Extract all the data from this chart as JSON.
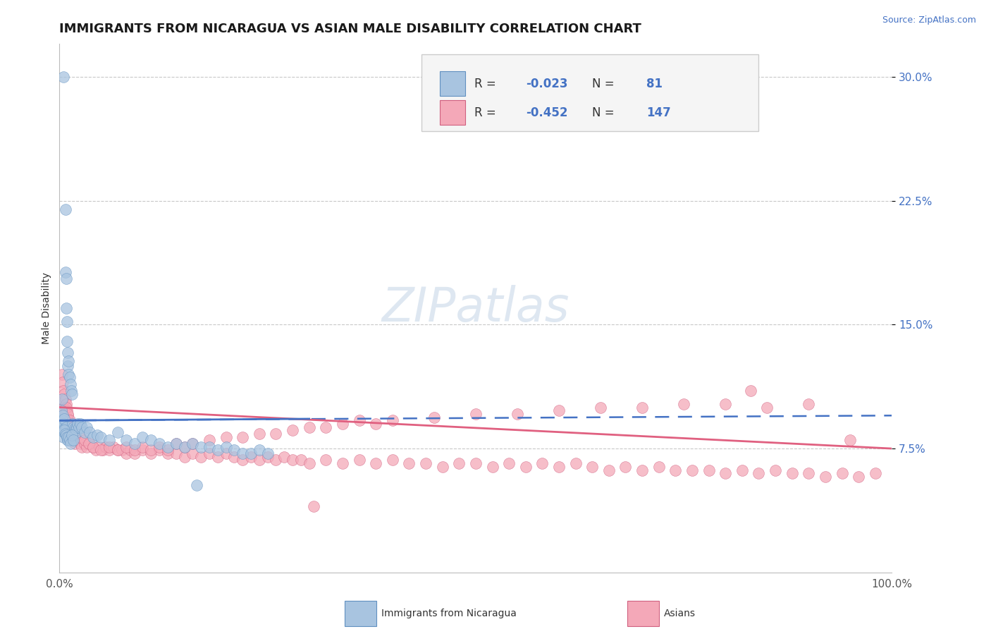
{
  "title": "IMMIGRANTS FROM NICARAGUA VS ASIAN MALE DISABILITY CORRELATION CHART",
  "source_text": "Source: ZipAtlas.com",
  "ylabel": "Male Disability",
  "watermark": "ZIPatlas",
  "xlim": [
    0.0,
    1.0
  ],
  "ylim": [
    0.0,
    0.32
  ],
  "x_ticks": [
    0.0,
    1.0
  ],
  "x_tick_labels": [
    "0.0%",
    "100.0%"
  ],
  "y_ticks": [
    0.075,
    0.15,
    0.225,
    0.3
  ],
  "y_tick_labels": [
    "7.5%",
    "15.0%",
    "22.5%",
    "30.0%"
  ],
  "blue_R": -0.023,
  "blue_N": 81,
  "pink_R": -0.452,
  "pink_N": 147,
  "blue_color": "#a8c4e0",
  "pink_color": "#f4a8b8",
  "blue_edge_color": "#6090c0",
  "pink_edge_color": "#d06080",
  "blue_line_color": "#4472c4",
  "pink_line_color": "#e06080",
  "tick_color": "#4472c4",
  "legend_box_color": "#f5f5f5",
  "legend_border_color": "#cccccc",
  "grid_color": "#c8c8c8",
  "background_color": "#ffffff",
  "title_fontsize": 13,
  "axis_label_fontsize": 10,
  "tick_label_fontsize": 11,
  "legend_fontsize": 12,
  "watermark_fontsize": 48,
  "watermark_color": "#c8d8e8",
  "watermark_alpha": 0.6,
  "blue_scatter_x": [
    0.002,
    0.003,
    0.003,
    0.004,
    0.004,
    0.005,
    0.005,
    0.005,
    0.006,
    0.006,
    0.006,
    0.007,
    0.007,
    0.008,
    0.008,
    0.008,
    0.009,
    0.009,
    0.009,
    0.01,
    0.01,
    0.01,
    0.011,
    0.011,
    0.011,
    0.012,
    0.012,
    0.013,
    0.013,
    0.014,
    0.014,
    0.015,
    0.015,
    0.016,
    0.017,
    0.018,
    0.019,
    0.02,
    0.021,
    0.022,
    0.023,
    0.025,
    0.027,
    0.03,
    0.033,
    0.036,
    0.04,
    0.045,
    0.05,
    0.06,
    0.07,
    0.08,
    0.09,
    0.1,
    0.11,
    0.12,
    0.13,
    0.14,
    0.15,
    0.16,
    0.17,
    0.18,
    0.19,
    0.2,
    0.21,
    0.22,
    0.23,
    0.24,
    0.25,
    0.006,
    0.007,
    0.008,
    0.009,
    0.01,
    0.011,
    0.012,
    0.013,
    0.015,
    0.017,
    0.165
  ],
  "blue_scatter_y": [
    0.098,
    0.092,
    0.105,
    0.088,
    0.095,
    0.082,
    0.09,
    0.3,
    0.087,
    0.093,
    0.085,
    0.22,
    0.182,
    0.178,
    0.16,
    0.088,
    0.152,
    0.14,
    0.083,
    0.133,
    0.125,
    0.08,
    0.128,
    0.12,
    0.083,
    0.118,
    0.082,
    0.114,
    0.08,
    0.11,
    0.082,
    0.108,
    0.08,
    0.09,
    0.088,
    0.087,
    0.086,
    0.085,
    0.088,
    0.09,
    0.088,
    0.09,
    0.088,
    0.085,
    0.088,
    0.085,
    0.082,
    0.083,
    0.082,
    0.08,
    0.085,
    0.08,
    0.078,
    0.082,
    0.08,
    0.078,
    0.076,
    0.078,
    0.076,
    0.078,
    0.076,
    0.076,
    0.074,
    0.076,
    0.074,
    0.072,
    0.072,
    0.074,
    0.072,
    0.086,
    0.084,
    0.083,
    0.082,
    0.08,
    0.082,
    0.08,
    0.078,
    0.083,
    0.08,
    0.053
  ],
  "pink_scatter_x": [
    0.003,
    0.004,
    0.004,
    0.005,
    0.005,
    0.006,
    0.006,
    0.007,
    0.007,
    0.008,
    0.008,
    0.009,
    0.009,
    0.01,
    0.01,
    0.011,
    0.011,
    0.012,
    0.013,
    0.014,
    0.015,
    0.016,
    0.017,
    0.018,
    0.02,
    0.022,
    0.025,
    0.027,
    0.03,
    0.033,
    0.036,
    0.04,
    0.044,
    0.048,
    0.052,
    0.056,
    0.06,
    0.065,
    0.07,
    0.075,
    0.08,
    0.085,
    0.09,
    0.1,
    0.11,
    0.12,
    0.13,
    0.14,
    0.15,
    0.16,
    0.17,
    0.18,
    0.19,
    0.2,
    0.21,
    0.22,
    0.23,
    0.24,
    0.25,
    0.26,
    0.27,
    0.28,
    0.29,
    0.3,
    0.32,
    0.34,
    0.36,
    0.38,
    0.4,
    0.42,
    0.44,
    0.46,
    0.48,
    0.5,
    0.52,
    0.54,
    0.56,
    0.58,
    0.6,
    0.62,
    0.64,
    0.66,
    0.68,
    0.7,
    0.72,
    0.74,
    0.76,
    0.78,
    0.8,
    0.82,
    0.84,
    0.86,
    0.88,
    0.9,
    0.92,
    0.94,
    0.96,
    0.98,
    0.008,
    0.01,
    0.012,
    0.014,
    0.016,
    0.018,
    0.02,
    0.025,
    0.03,
    0.035,
    0.04,
    0.05,
    0.06,
    0.07,
    0.08,
    0.09,
    0.1,
    0.11,
    0.12,
    0.13,
    0.14,
    0.15,
    0.16,
    0.18,
    0.2,
    0.22,
    0.24,
    0.26,
    0.28,
    0.3,
    0.32,
    0.34,
    0.36,
    0.38,
    0.4,
    0.45,
    0.5,
    0.55,
    0.6,
    0.65,
    0.7,
    0.75,
    0.8,
    0.85,
    0.9,
    0.95,
    0.83,
    0.305
  ],
  "pink_scatter_y": [
    0.12,
    0.115,
    0.105,
    0.11,
    0.1,
    0.108,
    0.098,
    0.105,
    0.095,
    0.102,
    0.092,
    0.098,
    0.09,
    0.095,
    0.086,
    0.092,
    0.084,
    0.09,
    0.086,
    0.082,
    0.082,
    0.08,
    0.082,
    0.078,
    0.082,
    0.08,
    0.078,
    0.076,
    0.078,
    0.076,
    0.078,
    0.076,
    0.074,
    0.076,
    0.074,
    0.076,
    0.074,
    0.076,
    0.074,
    0.074,
    0.072,
    0.074,
    0.072,
    0.074,
    0.072,
    0.074,
    0.072,
    0.072,
    0.07,
    0.072,
    0.07,
    0.072,
    0.07,
    0.072,
    0.07,
    0.068,
    0.07,
    0.068,
    0.07,
    0.068,
    0.07,
    0.068,
    0.068,
    0.066,
    0.068,
    0.066,
    0.068,
    0.066,
    0.068,
    0.066,
    0.066,
    0.064,
    0.066,
    0.066,
    0.064,
    0.066,
    0.064,
    0.066,
    0.064,
    0.066,
    0.064,
    0.062,
    0.064,
    0.062,
    0.064,
    0.062,
    0.062,
    0.062,
    0.06,
    0.062,
    0.06,
    0.062,
    0.06,
    0.06,
    0.058,
    0.06,
    0.058,
    0.06,
    0.1,
    0.096,
    0.092,
    0.088,
    0.086,
    0.088,
    0.086,
    0.082,
    0.08,
    0.078,
    0.076,
    0.074,
    0.076,
    0.074,
    0.076,
    0.074,
    0.076,
    0.074,
    0.076,
    0.074,
    0.078,
    0.076,
    0.078,
    0.08,
    0.082,
    0.082,
    0.084,
    0.084,
    0.086,
    0.088,
    0.088,
    0.09,
    0.092,
    0.09,
    0.092,
    0.094,
    0.096,
    0.096,
    0.098,
    0.1,
    0.1,
    0.102,
    0.102,
    0.1,
    0.102,
    0.08,
    0.11,
    0.04
  ]
}
